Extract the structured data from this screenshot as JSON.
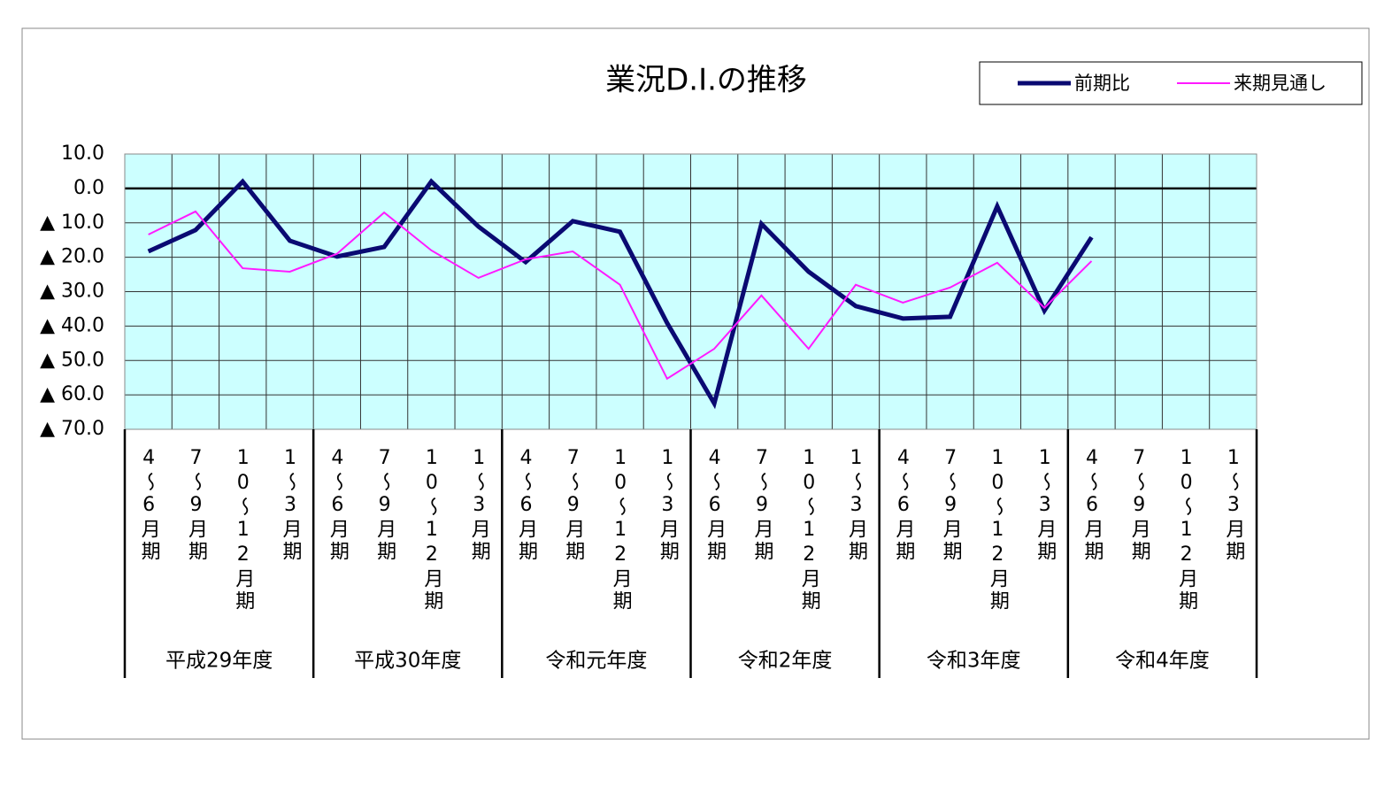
{
  "chart_data": {
    "type": "line",
    "title": "業況D.I.の推移",
    "categories": [
      "4～6月期",
      "7～9月期",
      "10～12月期",
      "1～3月期",
      "4～6月期",
      "7～9月期",
      "10～12月期",
      "1～3月期",
      "4～6月期",
      "7～9月期",
      "10～12月期",
      "1～3月期",
      "4～6月期",
      "7～9月期",
      "10～12月期",
      "1～3月期",
      "4～6月期",
      "7～9月期",
      "10～12月期",
      "1～3月期",
      "4～6月期",
      "7～9月期",
      "10～12月期",
      "1～3月期"
    ],
    "groups": [
      "平成29年度",
      "平成30年度",
      "令和元年度",
      "令和2年度",
      "令和3年度",
      "令和4年度"
    ],
    "series": [
      {
        "name": "前期比",
        "color": "#0a0a72",
        "values": [
          -18.3,
          -12.1,
          2.0,
          -15.2,
          -19.8,
          -17.0,
          2.0,
          -11.1,
          -21.4,
          -9.5,
          -12.6,
          -39.1,
          -62.5,
          -10.3,
          -24.2,
          -34.2,
          -37.8,
          -37.3,
          -5.2,
          -35.5,
          -14.2,
          null,
          null,
          null
        ]
      },
      {
        "name": "来期見通し",
        "color": "#ff1aff",
        "values": [
          -13.4,
          -6.7,
          -23.2,
          -24.2,
          -19.0,
          -7.0,
          -18.0,
          -26.0,
          -20.6,
          -18.3,
          -28.0,
          -55.3,
          -46.6,
          -31.1,
          -46.6,
          -28.0,
          -33.2,
          -28.8,
          -21.6,
          -34.7,
          -21.1,
          null,
          null,
          null
        ]
      }
    ],
    "ylim": [
      -70,
      10
    ],
    "yticks": [
      {
        "value": 10,
        "label": "10.0"
      },
      {
        "value": 0,
        "label": "0.0"
      },
      {
        "value": -10,
        "label": "▲ 10.0"
      },
      {
        "value": -20,
        "label": "▲ 20.0"
      },
      {
        "value": -30,
        "label": "▲ 30.0"
      },
      {
        "value": -40,
        "label": "▲ 40.0"
      },
      {
        "value": -50,
        "label": "▲ 50.0"
      },
      {
        "value": -60,
        "label": "▲ 60.0"
      },
      {
        "value": -70,
        "label": "▲ 70.0"
      }
    ],
    "grid": true,
    "plot_background": "#ccffff",
    "legend_position": "top-right"
  }
}
